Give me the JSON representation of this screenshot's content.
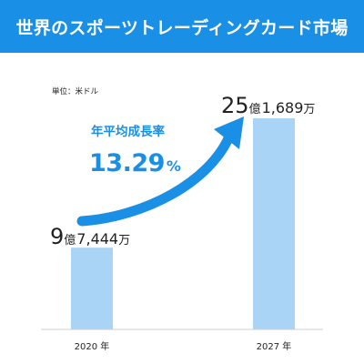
{
  "header": {
    "title": "世界のスポーツトレーディングカード市場"
  },
  "unit_note": "単位：米ドル",
  "growth": {
    "label": "年平均成長率",
    "value": "13.29",
    "suffix": "%"
  },
  "colors": {
    "header_bg": "#1a8fe6",
    "bar": "#a9d4f5",
    "arrow": "#1a8fe6",
    "accent": "#1a8fe6"
  },
  "chart_data": {
    "type": "bar",
    "categories": [
      "2020 年",
      "2027 年"
    ],
    "values": [
      974440000,
      2516890000
    ],
    "value_labels": [
      {
        "big": "9",
        "oku": "億",
        "rest": "7,444",
        "man": "万"
      },
      {
        "big": "25",
        "oku": "億",
        "rest": "1,689",
        "man": "万"
      }
    ],
    "title": "世界のスポーツトレーディングカード市場",
    "ylabel": "",
    "unit": "米ドル",
    "ylim": [
      0,
      2516890000
    ],
    "grid": false,
    "legend": "none"
  }
}
